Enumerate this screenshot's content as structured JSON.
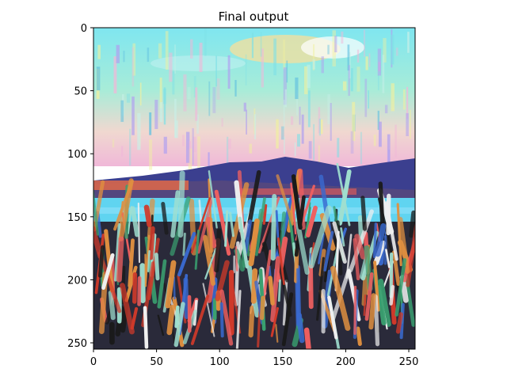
{
  "figure": {
    "title": "Final output"
  },
  "axes": {
    "x_ticks": [
      "0",
      "50",
      "100",
      "150",
      "200",
      "250"
    ],
    "y_ticks": [
      "0",
      "50",
      "100",
      "150",
      "200",
      "250"
    ],
    "x_range": [
      0,
      255
    ],
    "y_range": [
      0,
      255
    ],
    "y_inverted": true
  },
  "image": {
    "description": "stylized painting of a landscape with sky, mountains, water and vegetation",
    "colors": {
      "sky": "#7fe0e6",
      "sky_light": "#c8f0e8",
      "sky_pink": "#f0b8d8",
      "mountain": "#3a3a8a",
      "water": "#5ed0f0",
      "shore": "#e07050",
      "veg_dark": "#1a1a1a",
      "veg_red": "#d03a2a",
      "veg_white": "#f0f0f0",
      "veg_green": "#3aa070",
      "veg_blue": "#3a6ad0"
    }
  }
}
